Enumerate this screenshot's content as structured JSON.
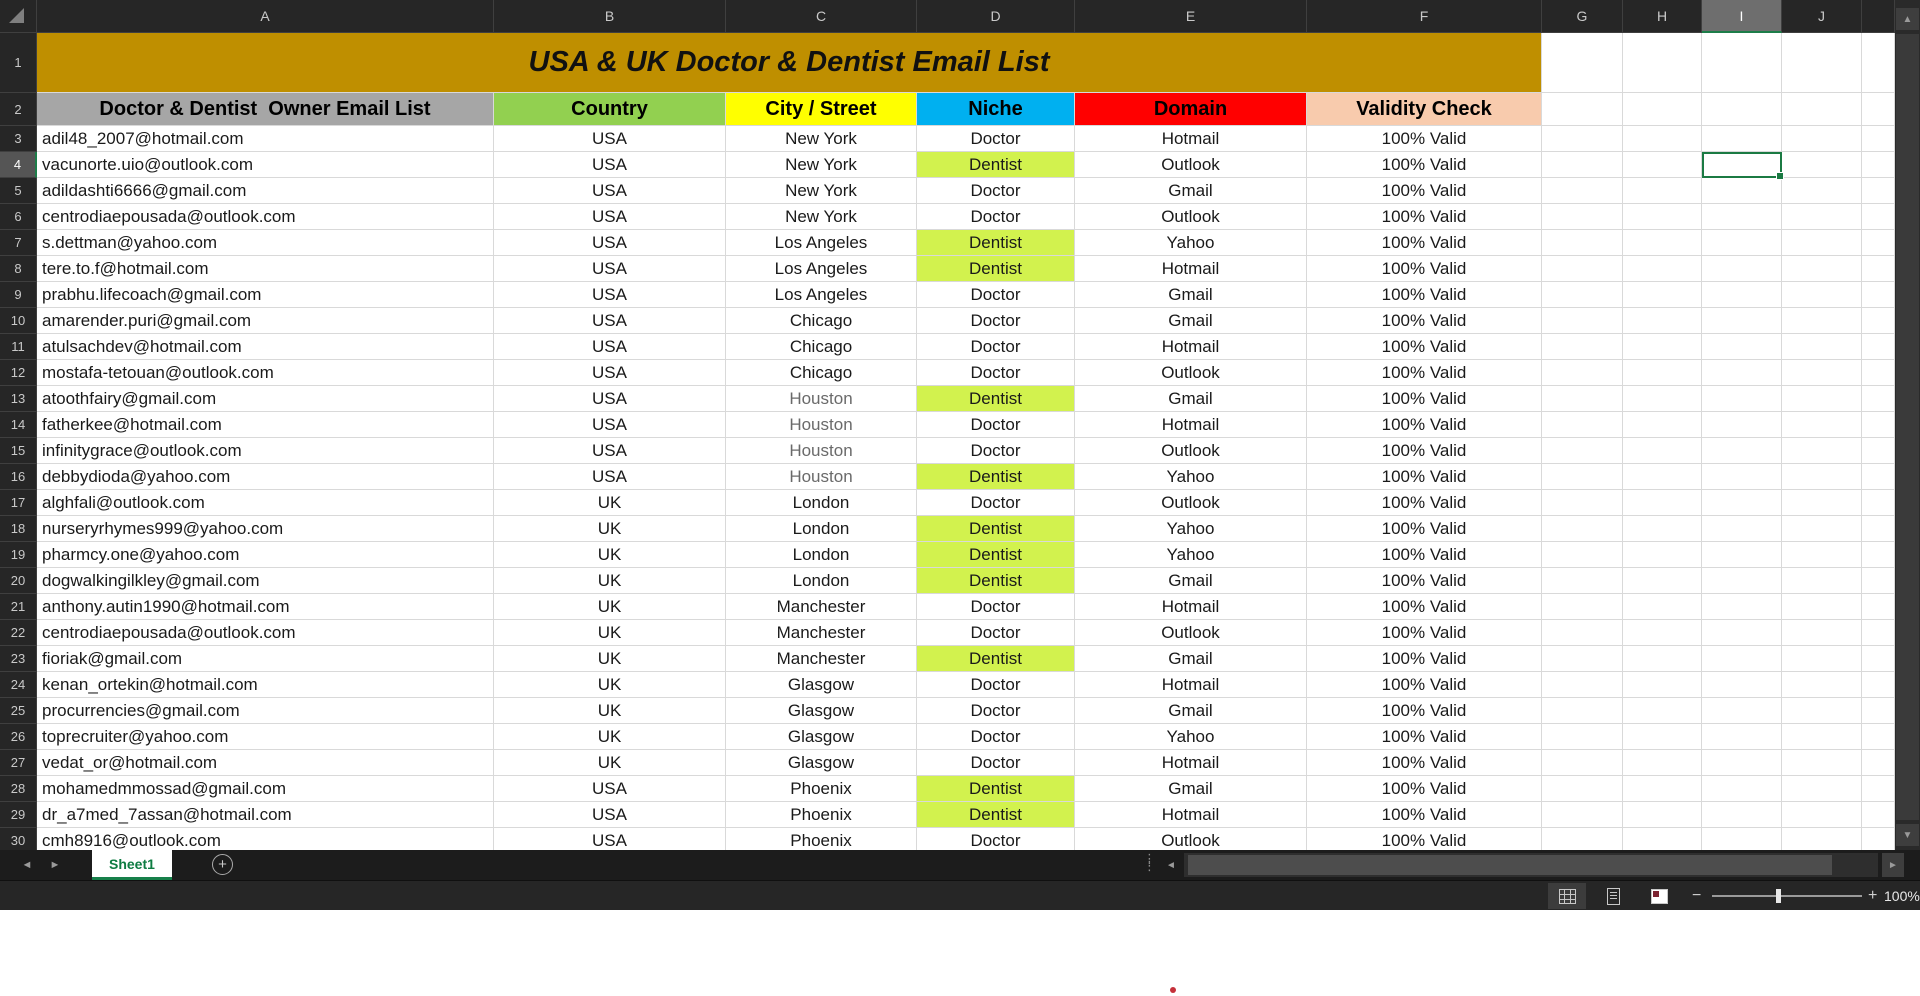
{
  "sheet": {
    "title": "USA & UK Doctor & Dentist Email List",
    "column_letters": [
      "A",
      "B",
      "C",
      "D",
      "E",
      "F",
      "G",
      "H",
      "I",
      "J"
    ],
    "selected_column": "I",
    "selected_row": 4,
    "selected_cell": "I4",
    "headers": [
      {
        "label": "Doctor & Dentist  Owner Email List",
        "bg": "#A6A6A6"
      },
      {
        "label": "Country",
        "bg": "#92D050"
      },
      {
        "label": "City / Street",
        "bg": "#FFFF00"
      },
      {
        "label": "Niche",
        "bg": "#00B0F0"
      },
      {
        "label": "Domain",
        "bg": "#FF0000"
      },
      {
        "label": "Validity Check",
        "bg": "#F8CBAD"
      }
    ],
    "rows": [
      {
        "n": 3,
        "email": "adil48_2007@hotmail.com",
        "country": "USA",
        "city": "New York",
        "niche": "Doctor",
        "domain": "Hotmail",
        "validity": "100% Valid",
        "city_muted": false
      },
      {
        "n": 4,
        "email": "vacunorte.uio@outlook.com",
        "country": "USA",
        "city": "New York",
        "niche": "Dentist",
        "domain": "Outlook",
        "validity": "100% Valid",
        "city_muted": false
      },
      {
        "n": 5,
        "email": "adildashti6666@gmail.com",
        "country": "USA",
        "city": "New York",
        "niche": "Doctor",
        "domain": "Gmail",
        "validity": "100% Valid",
        "city_muted": false
      },
      {
        "n": 6,
        "email": "centrodiaepousada@outlook.com",
        "country": "USA",
        "city": "New York",
        "niche": "Doctor",
        "domain": "Outlook",
        "validity": "100% Valid",
        "city_muted": false
      },
      {
        "n": 7,
        "email": "s.dettman@yahoo.com",
        "country": "USA",
        "city": "Los Angeles",
        "niche": "Dentist",
        "domain": "Yahoo",
        "validity": "100% Valid",
        "city_muted": false
      },
      {
        "n": 8,
        "email": "tere.to.f@hotmail.com",
        "country": "USA",
        "city": "Los Angeles",
        "niche": "Dentist",
        "domain": "Hotmail",
        "validity": "100% Valid",
        "city_muted": false
      },
      {
        "n": 9,
        "email": "prabhu.lifecoach@gmail.com",
        "country": "USA",
        "city": "Los Angeles",
        "niche": "Doctor",
        "domain": "Gmail",
        "validity": "100% Valid",
        "city_muted": false
      },
      {
        "n": 10,
        "email": "amarender.puri@gmail.com",
        "country": "USA",
        "city": "Chicago",
        "niche": "Doctor",
        "domain": "Gmail",
        "validity": "100% Valid",
        "city_muted": false
      },
      {
        "n": 11,
        "email": "atulsachdev@hotmail.com",
        "country": "USA",
        "city": "Chicago",
        "niche": "Doctor",
        "domain": "Hotmail",
        "validity": "100% Valid",
        "city_muted": false
      },
      {
        "n": 12,
        "email": "mostafa-tetouan@outlook.com",
        "country": "USA",
        "city": "Chicago",
        "niche": "Doctor",
        "domain": "Outlook",
        "validity": "100% Valid",
        "city_muted": false
      },
      {
        "n": 13,
        "email": "atoothfairy@gmail.com",
        "country": "USA",
        "city": "Houston",
        "niche": "Dentist",
        "domain": "Gmail",
        "validity": "100% Valid",
        "city_muted": true
      },
      {
        "n": 14,
        "email": "fatherkee@hotmail.com",
        "country": "USA",
        "city": "Houston",
        "niche": "Doctor",
        "domain": "Hotmail",
        "validity": "100% Valid",
        "city_muted": true
      },
      {
        "n": 15,
        "email": "infinitygrace@outlook.com",
        "country": "USA",
        "city": "Houston",
        "niche": "Doctor",
        "domain": "Outlook",
        "validity": "100% Valid",
        "city_muted": true
      },
      {
        "n": 16,
        "email": "debbydioda@yahoo.com",
        "country": "USA",
        "city": "Houston",
        "niche": "Dentist",
        "domain": "Yahoo",
        "validity": "100% Valid",
        "city_muted": true
      },
      {
        "n": 17,
        "email": "alghfali@outlook.com",
        "country": "UK",
        "city": "London",
        "niche": "Doctor",
        "domain": "Outlook",
        "validity": "100% Valid",
        "city_muted": false
      },
      {
        "n": 18,
        "email": "nurseryrhymes999@yahoo.com",
        "country": "UK",
        "city": "London",
        "niche": "Dentist",
        "domain": "Yahoo",
        "validity": "100% Valid",
        "city_muted": false
      },
      {
        "n": 19,
        "email": "pharmcy.one@yahoo.com",
        "country": "UK",
        "city": "London",
        "niche": "Dentist",
        "domain": "Yahoo",
        "validity": "100% Valid",
        "city_muted": false
      },
      {
        "n": 20,
        "email": "dogwalkingilkley@gmail.com",
        "country": "UK",
        "city": "London",
        "niche": "Dentist",
        "domain": "Gmail",
        "validity": "100% Valid",
        "city_muted": false
      },
      {
        "n": 21,
        "email": "anthony.autin1990@hotmail.com",
        "country": "UK",
        "city": "Manchester",
        "niche": "Doctor",
        "domain": "Hotmail",
        "validity": "100% Valid",
        "city_muted": false
      },
      {
        "n": 22,
        "email": "centrodiaepousada@outlook.com",
        "country": "UK",
        "city": "Manchester",
        "niche": "Doctor",
        "domain": "Outlook",
        "validity": "100% Valid",
        "city_muted": false
      },
      {
        "n": 23,
        "email": "fioriak@gmail.com",
        "country": "UK",
        "city": "Manchester",
        "niche": "Dentist",
        "domain": "Gmail",
        "validity": "100% Valid",
        "city_muted": false
      },
      {
        "n": 24,
        "email": "kenan_ortekin@hotmail.com",
        "country": "UK",
        "city": "Glasgow",
        "niche": "Doctor",
        "domain": "Hotmail",
        "validity": "100% Valid",
        "city_muted": false
      },
      {
        "n": 25,
        "email": "procurrencies@gmail.com",
        "country": "UK",
        "city": "Glasgow",
        "niche": "Doctor",
        "domain": "Gmail",
        "validity": "100% Valid",
        "city_muted": false
      },
      {
        "n": 26,
        "email": "toprecruiter@yahoo.com",
        "country": "UK",
        "city": "Glasgow",
        "niche": "Doctor",
        "domain": "Yahoo",
        "validity": "100% Valid",
        "city_muted": false
      },
      {
        "n": 27,
        "email": "vedat_or@hotmail.com",
        "country": "UK",
        "city": "Glasgow",
        "niche": "Doctor",
        "domain": "Hotmail",
        "validity": "100% Valid",
        "city_muted": false
      },
      {
        "n": 28,
        "email": "mohamedmmossad@gmail.com",
        "country": "USA",
        "city": "Phoenix",
        "niche": "Dentist",
        "domain": "Gmail",
        "validity": "100% Valid",
        "city_muted": false
      },
      {
        "n": 29,
        "email": "dr_a7med_7assan@hotmail.com",
        "country": "USA",
        "city": "Phoenix",
        "niche": "Dentist",
        "domain": "Hotmail",
        "validity": "100% Valid",
        "city_muted": false
      },
      {
        "n": 30,
        "email": "cmh8916@outlook.com",
        "country": "USA",
        "city": "Phoenix",
        "niche": "Doctor",
        "domain": "Outlook",
        "validity": "100% Valid",
        "city_muted": false
      }
    ]
  },
  "tabs": {
    "active_sheet": "Sheet1"
  },
  "status": {
    "zoom_level": "100%"
  },
  "icons": {
    "prev_sheet": "◄",
    "next_sheet": "►",
    "add_sheet": "+",
    "tab_splitter_dots": "⋮",
    "scroll_up": "▲",
    "scroll_down": "▼",
    "scroll_left": "◄",
    "scroll_right": "►",
    "zoom_out": "−",
    "zoom_in": "+"
  },
  "colors": {
    "title_bg": "#BF8F00",
    "dentist_highlight": "#D2F24E",
    "selection_green": "#1B7A43",
    "header_dark": "#262626",
    "header_a_bg": "#A6A6A6",
    "country_bg": "#92D050",
    "city_bg": "#FFFF00",
    "niche_bg": "#00B0F0",
    "domain_bg": "#FF0000",
    "validity_bg": "#F8CBAD"
  }
}
